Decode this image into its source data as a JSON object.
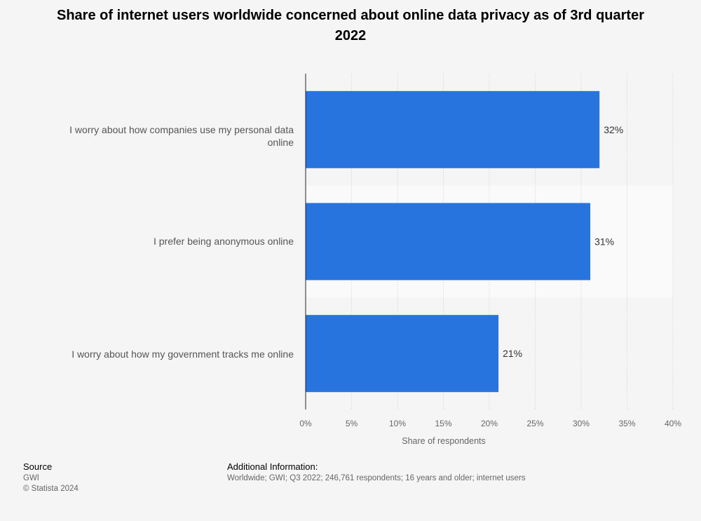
{
  "chart_data": {
    "type": "bar",
    "orientation": "horizontal",
    "title": "Share of internet users worldwide concerned about online data privacy as of 3rd quarter 2022",
    "categories": [
      "I worry about how companies use my personal data online",
      "I prefer being anonymous online",
      "I worry about how my government tracks me online"
    ],
    "values": [
      32,
      31,
      21
    ],
    "data_labels": [
      "32%",
      "31%",
      "21%"
    ],
    "xlabel": "Share of respondents",
    "ylabel": "",
    "xlim": [
      0,
      40
    ],
    "ticks": [
      0,
      5,
      10,
      15,
      20,
      25,
      30,
      35,
      40
    ],
    "tick_labels": [
      "0%",
      "5%",
      "10%",
      "15%",
      "20%",
      "25%",
      "30%",
      "35%",
      "40%"
    ],
    "grid": true,
    "bar_color": "#2874df"
  },
  "footer": {
    "source_heading": "Source",
    "source": "GWI",
    "copyright": "© Statista 2024",
    "info_heading": "Additional Information:",
    "info": "Worldwide; GWI; Q3 2022; 246,761 respondents; 16 years and older; internet users"
  }
}
